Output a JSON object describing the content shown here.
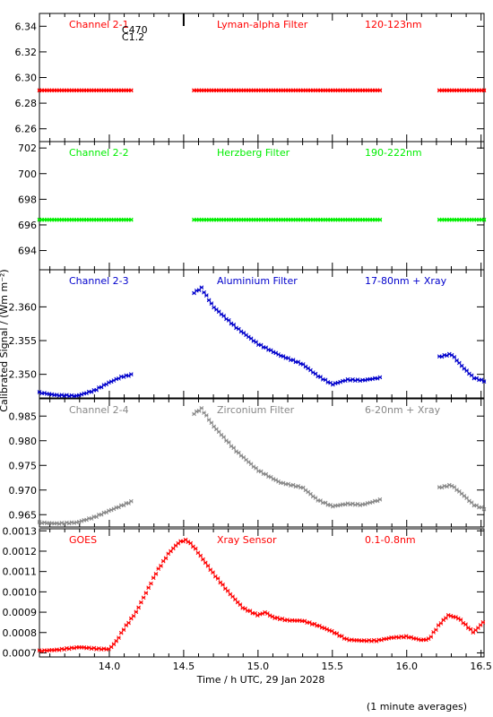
{
  "x_axis": {
    "label": "Time / h UTC, 29 Jan 2028",
    "range": [
      13.53,
      16.52
    ],
    "ticks": [
      14.0,
      14.5,
      15.0,
      15.5,
      16.0,
      16.5
    ],
    "tick_labels": [
      "14.0",
      "14.5",
      "15.0",
      "15.5",
      "16.0",
      "16.5"
    ]
  },
  "y_axis_label": "Calibrated Signal / (Wm m⁻²)",
  "footer_note": "(1 minute averages)",
  "event_marker": {
    "x": 14.5,
    "label_1": "C470",
    "label_2": "C1.2"
  },
  "chart_data": [
    {
      "type": "scatter",
      "panel": "channel-2-1",
      "color": "#ff0000",
      "labels": [
        "Channel 2-1",
        "Lyman-alpha Filter",
        "120-123nm"
      ],
      "ylim": [
        6.25,
        6.35
      ],
      "yticks": [
        6.26,
        6.28,
        6.3,
        6.32,
        6.34
      ],
      "ytick_labels": [
        "6.26",
        "6.28",
        "6.30",
        "6.32",
        "6.34"
      ],
      "segments": [
        {
          "start": 13.53,
          "end": 14.16,
          "kind": "flat",
          "value": 6.29
        },
        {
          "start": 14.57,
          "end": 15.82,
          "kind": "flat",
          "value": 6.29
        },
        {
          "start": 16.22,
          "end": 16.52,
          "kind": "flat",
          "value": 6.29
        }
      ]
    },
    {
      "type": "scatter",
      "panel": "channel-2-2",
      "color": "#00ee00",
      "labels": [
        "Channel 2-2",
        "Herzberg Filter",
        "190-222nm"
      ],
      "ylim": [
        692.5,
        702.5
      ],
      "yticks": [
        694,
        696,
        698,
        700,
        702
      ],
      "ytick_labels": [
        "694",
        "696",
        "698",
        "700",
        "702"
      ],
      "segments": [
        {
          "start": 13.53,
          "end": 14.16,
          "kind": "flat",
          "value": 696.4
        },
        {
          "start": 14.57,
          "end": 15.82,
          "kind": "flat",
          "value": 696.4
        },
        {
          "start": 16.22,
          "end": 16.52,
          "kind": "flat",
          "value": 696.4
        }
      ]
    },
    {
      "type": "scatter",
      "panel": "channel-2-3",
      "color": "#0000cc",
      "labels": [
        "Channel 2-3",
        "Aluminium Filter",
        "17-80nm + Xray"
      ],
      "ylim": [
        2.3465,
        2.3655
      ],
      "yticks": [
        2.35,
        2.355,
        2.36
      ],
      "ytick_labels": [
        "2.350",
        "2.355",
        "2.360"
      ],
      "segments": [
        {
          "start": 13.53,
          "end": 14.16,
          "kind": "curve",
          "x": [
            13.53,
            13.65,
            13.78,
            13.9,
            14.0,
            14.08,
            14.16
          ],
          "y": [
            2.3473,
            2.3469,
            2.3468,
            2.3476,
            2.3488,
            2.3496,
            2.35
          ]
        },
        {
          "start": 14.57,
          "end": 15.82,
          "kind": "curve",
          "x": [
            14.57,
            14.62,
            14.7,
            14.85,
            15.0,
            15.15,
            15.3,
            15.4,
            15.5,
            15.6,
            15.7,
            15.82
          ],
          "y": [
            2.3621,
            2.3628,
            2.36,
            2.357,
            2.3545,
            2.3528,
            2.3515,
            2.3498,
            2.3485,
            2.3492,
            2.3491,
            2.3495
          ]
        },
        {
          "start": 16.22,
          "end": 16.52,
          "kind": "curve",
          "x": [
            16.22,
            16.3,
            16.38,
            16.45,
            16.52
          ],
          "y": [
            2.3526,
            2.353,
            2.351,
            2.3495,
            2.349
          ]
        }
      ]
    },
    {
      "type": "scatter",
      "panel": "channel-2-4",
      "color": "#888888",
      "labels": [
        "Channel 2-4",
        "Zirconium Filter",
        "6-20nm + Xray"
      ],
      "ylim": [
        0.9625,
        0.9885
      ],
      "yticks": [
        0.965,
        0.97,
        0.975,
        0.98,
        0.985
      ],
      "ytick_labels": [
        "0.965",
        "0.970",
        "0.975",
        "0.980",
        "0.985"
      ],
      "segments": [
        {
          "start": 13.53,
          "end": 14.16,
          "kind": "curve",
          "x": [
            13.53,
            13.65,
            13.78,
            13.9,
            14.0,
            14.08,
            14.16
          ],
          "y": [
            0.9634,
            0.9632,
            0.9634,
            0.9645,
            0.9658,
            0.9668,
            0.9678
          ]
        },
        {
          "start": 14.57,
          "end": 15.82,
          "kind": "curve",
          "x": [
            14.57,
            14.62,
            14.7,
            14.85,
            15.0,
            15.15,
            15.3,
            15.4,
            15.5,
            15.6,
            15.7,
            15.82
          ],
          "y": [
            0.9855,
            0.9865,
            0.983,
            0.978,
            0.974,
            0.9715,
            0.9705,
            0.968,
            0.9667,
            0.9672,
            0.967,
            0.968
          ]
        },
        {
          "start": 16.22,
          "end": 16.52,
          "kind": "curve",
          "x": [
            16.22,
            16.3,
            16.38,
            16.45,
            16.52
          ],
          "y": [
            0.9705,
            0.971,
            0.969,
            0.967,
            0.9662
          ]
        }
      ]
    },
    {
      "type": "scatter",
      "panel": "goes",
      "color": "#ff0000",
      "labels": [
        "GOES",
        "Xray Sensor",
        "0.1-0.8nm"
      ],
      "ylim": [
        0.00068,
        0.00131
      ],
      "yticks": [
        0.0007,
        0.0008,
        0.0009,
        0.001,
        0.0011,
        0.0012,
        0.0013
      ],
      "ytick_labels": [
        "0.0007",
        "0.0008",
        "0.0009",
        "0.0010",
        "0.0011",
        "0.0012",
        "0.0013"
      ],
      "segments": [
        {
          "start": 13.53,
          "end": 16.52,
          "kind": "curve",
          "x": [
            13.53,
            13.65,
            13.8,
            13.92,
            14.0,
            14.05,
            14.1,
            14.18,
            14.25,
            14.32,
            14.4,
            14.47,
            14.52,
            14.57,
            14.62,
            14.7,
            14.8,
            14.9,
            15.0,
            15.05,
            15.1,
            15.2,
            15.3,
            15.4,
            15.5,
            15.6,
            15.7,
            15.8,
            15.9,
            16.0,
            16.1,
            16.15,
            16.22,
            16.28,
            16.35,
            16.45,
            16.52
          ],
          "y": [
            0.00071,
            0.000715,
            0.000728,
            0.00072,
            0.000718,
            0.00076,
            0.00082,
            0.0009,
            0.001,
            0.0011,
            0.00119,
            0.001245,
            0.001255,
            0.00122,
            0.00117,
            0.00109,
            0.001,
            0.00092,
            0.000885,
            0.0009,
            0.000875,
            0.00086,
            0.000858,
            0.000835,
            0.000805,
            0.000765,
            0.00076,
            0.00076,
            0.000775,
            0.00078,
            0.000763,
            0.000768,
            0.00084,
            0.000885,
            0.00087,
            0.0008,
            0.000855
          ]
        }
      ]
    }
  ]
}
